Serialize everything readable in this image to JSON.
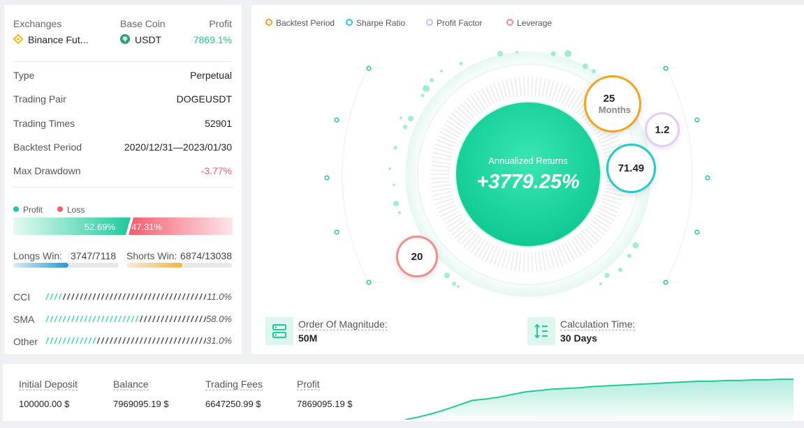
{
  "header": {
    "exchanges_label": "Exchanges",
    "exchange_value": "Binance Fut...",
    "base_coin_label": "Base Coin",
    "base_coin_value": "USDT",
    "profit_label": "Profit",
    "profit_value": "7869.1%"
  },
  "details": [
    {
      "label": "Type",
      "value": "Perpetual"
    },
    {
      "label": "Trading Pair",
      "value": "DOGEUSDT"
    },
    {
      "label": "Trading Times",
      "value": "52901"
    },
    {
      "label": "Backtest Period",
      "value": "2020/12/31—2023/01/30"
    },
    {
      "label": "Max Drawdown",
      "value": "-3.77%"
    }
  ],
  "pl": {
    "profit_legend": "Profit",
    "loss_legend": "Loss",
    "profit_pct": "52.69%",
    "loss_pct": "47.31%",
    "profit_fraction": 0.5269
  },
  "wins": {
    "longs_label": "Longs Win:",
    "longs_value": "3747/7118",
    "longs_fraction": 0.526,
    "shorts_label": "Shorts Win:",
    "shorts_value": "6874/13038",
    "shorts_fraction": 0.527
  },
  "indicators": [
    {
      "label": "CCI",
      "value": "11.0%",
      "fraction": 0.11
    },
    {
      "label": "SMA",
      "value": "58.0%",
      "fraction": 0.58
    },
    {
      "label": "Other",
      "value": "31.0%",
      "fraction": 0.31
    }
  ],
  "legend": [
    "Backtest Period",
    "Sharpe Ratio",
    "Profit Factor",
    "Leverage"
  ],
  "center": {
    "title": "Annualized Returns",
    "value": "+3779.25%"
  },
  "bubbles": {
    "period_value": "25",
    "period_unit": "Months",
    "profit_factor": "1.2",
    "sharpe_ratio": "71.49",
    "leverage": "20"
  },
  "info": {
    "magnitude_label": "Order Of Magnitude:",
    "magnitude_value": "50M",
    "calc_label": "Calculation Time:",
    "calc_value": "30 Days"
  },
  "summary": [
    {
      "label": "Initial Deposit",
      "value": "100000.00 $"
    },
    {
      "label": "Balance",
      "value": "7969095.19 $"
    },
    {
      "label": "Trading Fees",
      "value": "6647250.99 $"
    },
    {
      "label": "Profit",
      "value": "7869095.19 $"
    }
  ],
  "colors": {
    "green": "#1fc99a",
    "red": "#f25c6e",
    "orange": "#f2a31b",
    "teal": "#27c8c8",
    "purple": "#d7b8f5",
    "pink": "#f48a8a",
    "blue": "#1a9fd6",
    "yellow": "#f0c14b"
  },
  "chart_data": {
    "type": "area",
    "series": [
      {
        "values": [
          0,
          4,
          9,
          15,
          22,
          29,
          31,
          34,
          38,
          42,
          44,
          46,
          47,
          48,
          50,
          51,
          52,
          53,
          54,
          55,
          56,
          57,
          58,
          58,
          59,
          59,
          60,
          60,
          61,
          61
        ]
      }
    ]
  }
}
